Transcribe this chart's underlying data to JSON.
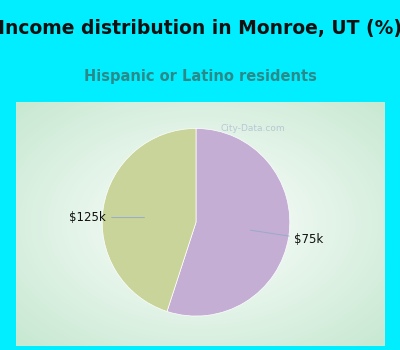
{
  "title": "Income distribution in Monroe, UT (%)",
  "subtitle": "Hispanic or Latino residents",
  "title_color": "#111111",
  "subtitle_color": "#2a8a8a",
  "title_fontsize": 13.5,
  "subtitle_fontsize": 10.5,
  "bg_cyan": "#00eeff",
  "bg_chart_center": "#ffffff",
  "bg_chart_edge": "#c8e8d0",
  "slices": [
    {
      "label": "$75k",
      "value": 55,
      "color": "#c4aed4"
    },
    {
      "label": "$125k",
      "value": 45,
      "color": "#c8d49a"
    }
  ],
  "label_fontsize": 8.5,
  "watermark": "City-Data.com",
  "watermark_color": "#aabbcc"
}
